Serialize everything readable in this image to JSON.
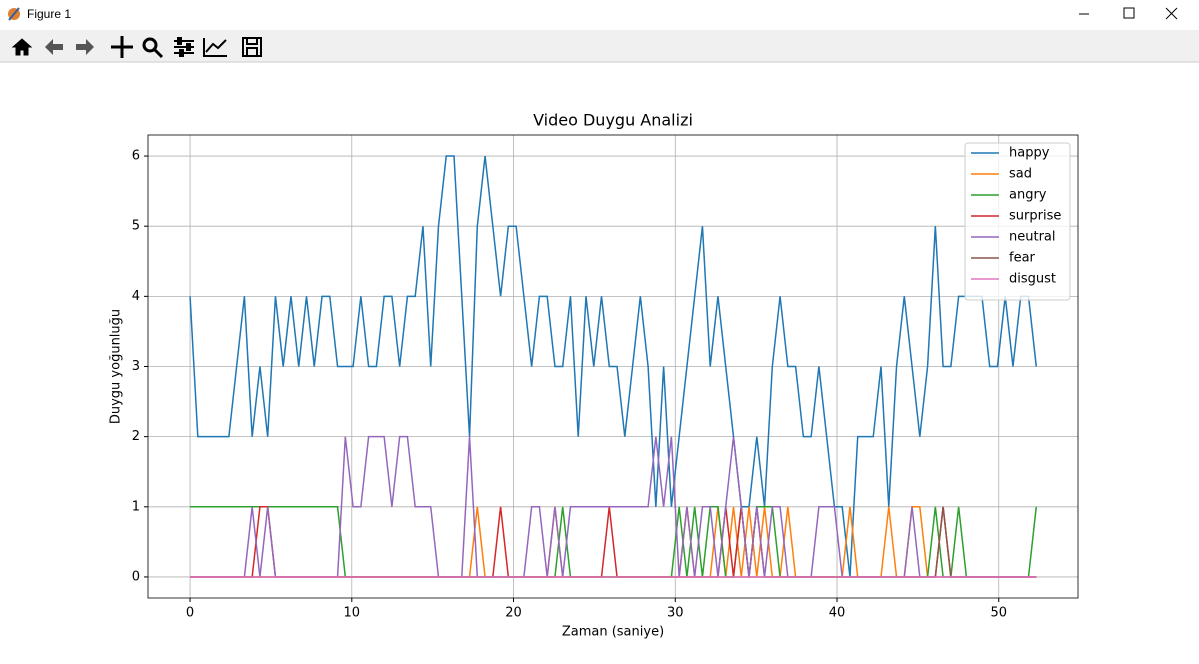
{
  "window": {
    "title": "Figure 1"
  },
  "chart_data": {
    "type": "line",
    "title": "Video Duygu Analizi",
    "x_label": "Zaman (saniye)",
    "y_label": "Duygu yoğunluğu",
    "x": [
      0,
      0.48,
      0.96,
      1.44,
      1.92,
      2.4,
      2.88,
      3.36,
      3.84,
      4.32,
      4.8,
      5.28,
      5.76,
      6.24,
      6.72,
      7.2,
      7.68,
      8.16,
      8.64,
      9.12,
      9.6,
      10.08,
      10.56,
      11.04,
      11.52,
      12,
      12.48,
      12.96,
      13.44,
      13.92,
      14.4,
      14.88,
      15.36,
      15.84,
      16.32,
      16.8,
      17.28,
      17.76,
      18.24,
      18.72,
      19.2,
      19.68,
      20.16,
      20.64,
      21.12,
      21.6,
      22.08,
      22.56,
      23.04,
      23.52,
      24,
      24.48,
      24.96,
      25.44,
      25.92,
      26.4,
      26.88,
      27.36,
      27.84,
      28.32,
      28.8,
      29.28,
      29.76,
      30.24,
      30.72,
      31.2,
      31.68,
      32.16,
      32.64,
      33.12,
      33.6,
      34.08,
      34.56,
      35.04,
      35.52,
      36,
      36.48,
      36.96,
      37.44,
      37.92,
      38.4,
      38.88,
      39.36,
      39.84,
      40.32,
      40.8,
      41.28,
      41.76,
      42.24,
      42.72,
      43.2,
      43.68,
      44.16,
      44.64,
      45.12,
      45.6,
      46.08,
      46.56,
      47.04,
      47.52,
      48,
      48.48,
      48.96,
      49.44,
      49.92,
      50.4,
      50.88,
      51.36,
      51.84,
      52.32
    ],
    "series": [
      {
        "name": "happy",
        "color": "#1f77b4",
        "values": [
          4,
          2,
          2,
          2,
          2,
          2,
          3,
          4,
          2,
          3,
          2,
          4,
          3,
          4,
          3,
          4,
          3,
          4,
          4,
          3,
          3,
          3,
          4,
          3,
          3,
          4,
          4,
          3,
          4,
          4,
          5,
          3,
          5,
          6,
          6,
          4,
          2,
          5,
          6,
          5,
          4,
          5,
          5,
          4,
          3,
          4,
          4,
          3,
          3,
          4,
          2,
          4,
          3,
          4,
          3,
          3,
          2,
          3,
          4,
          3,
          1,
          3,
          1,
          2,
          3,
          4,
          5,
          3,
          4,
          3,
          2,
          1,
          1,
          2,
          1,
          3,
          4,
          3,
          3,
          2,
          2,
          3,
          2,
          1,
          1,
          0,
          2,
          2,
          2,
          3,
          1,
          3,
          4,
          3,
          2,
          3,
          5,
          3,
          3,
          4,
          4,
          4,
          4,
          3,
          3,
          4,
          3,
          4,
          4,
          3
        ]
      },
      {
        "name": "sad",
        "color": "#ff7f0e",
        "values": [
          0,
          0,
          0,
          0,
          0,
          0,
          0,
          0,
          0,
          0,
          0,
          0,
          0,
          0,
          0,
          0,
          0,
          0,
          0,
          0,
          0,
          0,
          0,
          0,
          0,
          0,
          0,
          0,
          0,
          0,
          0,
          0,
          0,
          0,
          0,
          0,
          0,
          1,
          0,
          0,
          0,
          0,
          0,
          0,
          0,
          0,
          0,
          1,
          0,
          0,
          0,
          0,
          0,
          0,
          0,
          0,
          0,
          0,
          0,
          0,
          0,
          0,
          0,
          0,
          1,
          0,
          0,
          0,
          1,
          0,
          1,
          0,
          1,
          0,
          1,
          0,
          0,
          1,
          0,
          0,
          0,
          0,
          0,
          0,
          0,
          1,
          0,
          0,
          0,
          0,
          1,
          0,
          0,
          1,
          1,
          0,
          0,
          0,
          0,
          0,
          0,
          0,
          0,
          0,
          0,
          0,
          0,
          0,
          0,
          0
        ]
      },
      {
        "name": "angry",
        "color": "#2ca02c",
        "values": [
          1,
          1,
          1,
          1,
          1,
          1,
          1,
          1,
          1,
          1,
          1,
          1,
          1,
          1,
          1,
          1,
          1,
          1,
          1,
          1,
          0,
          0,
          0,
          0,
          0,
          0,
          0,
          0,
          0,
          0,
          0,
          0,
          0,
          0,
          0,
          0,
          0,
          0,
          0,
          0,
          0,
          0,
          0,
          0,
          0,
          0,
          0,
          0,
          1,
          0,
          0,
          0,
          0,
          0,
          0,
          0,
          0,
          0,
          0,
          0,
          0,
          0,
          0,
          1,
          0,
          1,
          0,
          1,
          1,
          0,
          0,
          1,
          0,
          1,
          1,
          1,
          0,
          0,
          0,
          0,
          0,
          0,
          0,
          0,
          0,
          0,
          0,
          0,
          0,
          0,
          0,
          0,
          0,
          0,
          0,
          0,
          1,
          0,
          0,
          1,
          0,
          0,
          0,
          0,
          0,
          0,
          0,
          0,
          0,
          1
        ]
      },
      {
        "name": "surprise",
        "color": "#d62728",
        "values": [
          0,
          0,
          0,
          0,
          0,
          0,
          0,
          0,
          0,
          1,
          1,
          0,
          0,
          0,
          0,
          0,
          0,
          0,
          0,
          0,
          0,
          0,
          0,
          0,
          0,
          0,
          0,
          0,
          0,
          0,
          0,
          0,
          0,
          0,
          0,
          0,
          0,
          0,
          0,
          0,
          1,
          0,
          0,
          0,
          0,
          0,
          0,
          0,
          0,
          0,
          0,
          0,
          0,
          0,
          1,
          0,
          0,
          0,
          0,
          0,
          0,
          0,
          0,
          0,
          0,
          0,
          0,
          0,
          0,
          1,
          0,
          1,
          0,
          1,
          0,
          0,
          0,
          0,
          0,
          0,
          0,
          0,
          0,
          0,
          0,
          0,
          0,
          0,
          0,
          0,
          0,
          0,
          0,
          0,
          0,
          0,
          0,
          1,
          0,
          0,
          0,
          0,
          0,
          0,
          0,
          0,
          0,
          0,
          0,
          0
        ]
      },
      {
        "name": "neutral",
        "color": "#9467bd",
        "values": [
          0,
          0,
          0,
          0,
          0,
          0,
          0,
          0,
          1,
          0,
          1,
          0,
          0,
          0,
          0,
          0,
          0,
          0,
          0,
          0,
          2,
          1,
          1,
          2,
          2,
          2,
          1,
          2,
          2,
          1,
          1,
          1,
          0,
          0,
          0,
          0,
          2,
          0,
          0,
          0,
          0,
          0,
          0,
          0,
          1,
          1,
          0,
          1,
          0,
          1,
          1,
          1,
          1,
          1,
          1,
          1,
          1,
          1,
          1,
          1,
          2,
          1,
          2,
          0,
          1,
          0,
          1,
          1,
          0,
          1,
          2,
          1,
          0,
          1,
          0,
          1,
          1,
          0,
          0,
          0,
          0,
          1,
          1,
          1,
          0,
          0,
          0,
          0,
          0,
          0,
          0,
          0,
          0,
          1,
          0,
          0,
          0,
          0,
          0,
          0,
          0,
          0,
          0,
          0,
          0,
          0,
          0,
          0,
          0,
          0
        ]
      },
      {
        "name": "fear",
        "color": "#8c564b",
        "values": [
          0,
          0,
          0,
          0,
          0,
          0,
          0,
          0,
          0,
          0,
          0,
          0,
          0,
          0,
          0,
          0,
          0,
          0,
          0,
          0,
          0,
          0,
          0,
          0,
          0,
          0,
          0,
          0,
          0,
          0,
          0,
          0,
          0,
          0,
          0,
          0,
          0,
          0,
          0,
          0,
          0,
          0,
          0,
          0,
          0,
          0,
          0,
          0,
          0,
          0,
          0,
          0,
          0,
          0,
          0,
          0,
          0,
          0,
          0,
          0,
          0,
          0,
          0,
          0,
          0,
          0,
          0,
          0,
          0,
          0,
          0,
          0,
          0,
          0,
          0,
          0,
          0,
          0,
          0,
          0,
          0,
          0,
          0,
          0,
          0,
          0,
          0,
          0,
          0,
          0,
          0,
          0,
          0,
          0,
          0,
          0,
          0,
          1,
          0,
          0,
          0,
          0,
          0,
          0,
          0,
          0,
          0,
          0,
          0,
          0
        ]
      },
      {
        "name": "disgust",
        "color": "#e377c2",
        "values": [
          0,
          0,
          0,
          0,
          0,
          0,
          0,
          0,
          0,
          0,
          0,
          0,
          0,
          0,
          0,
          0,
          0,
          0,
          0,
          0,
          0,
          0,
          0,
          0,
          0,
          0,
          0,
          0,
          0,
          0,
          0,
          0,
          0,
          0,
          0,
          0,
          0,
          0,
          0,
          0,
          0,
          0,
          0,
          0,
          0,
          0,
          0,
          0,
          0,
          0,
          0,
          0,
          0,
          0,
          0,
          0,
          0,
          0,
          0,
          0,
          0,
          0,
          0,
          0,
          0,
          0,
          0,
          0,
          0,
          0,
          0,
          0,
          0,
          0,
          0,
          0,
          0,
          0,
          0,
          0,
          0,
          0,
          0,
          0,
          0,
          0,
          0,
          0,
          0,
          0,
          0,
          0,
          0,
          0,
          0,
          0,
          0,
          0,
          0,
          0,
          0,
          0,
          0,
          0,
          0,
          0,
          0,
          0,
          0,
          0
        ]
      }
    ],
    "xlim": [
      -2.6,
      54.9
    ],
    "xticks": [
      0,
      10,
      20,
      30,
      40,
      50
    ],
    "ylim": [
      -0.3,
      6.3
    ],
    "yticks": [
      0,
      1,
      2,
      3,
      4,
      5,
      6
    ],
    "grid": true,
    "legend": "upper right"
  }
}
